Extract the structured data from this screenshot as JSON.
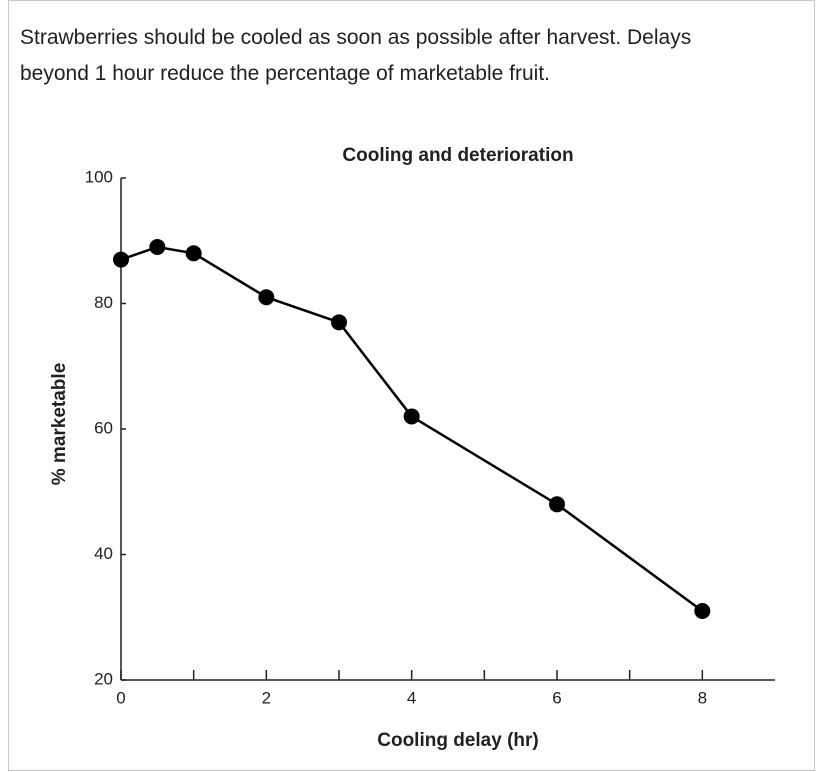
{
  "caption": [
    "Strawberries should be cooled as soon as possible after harvest. Delays",
    "beyond 1 hour reduce the percentage of marketable fruit."
  ],
  "chart_data": {
    "type": "line",
    "title": "Cooling and deterioration",
    "x_label": "Cooling delay (hr)",
    "y_label": "% marketable",
    "x": [
      0,
      0.5,
      1,
      2,
      3,
      4,
      6,
      8
    ],
    "values": [
      87,
      89,
      88,
      81,
      77,
      62,
      48,
      31
    ],
    "color": "#000000",
    "xlim": [
      0,
      9
    ],
    "xticks": [
      0,
      2,
      4,
      6,
      8
    ],
    "xminor_ticks": [
      1,
      3,
      5,
      7
    ],
    "ylim": [
      20,
      100
    ],
    "yticks": [
      20,
      40,
      60,
      80,
      100
    ],
    "grid": false
  }
}
